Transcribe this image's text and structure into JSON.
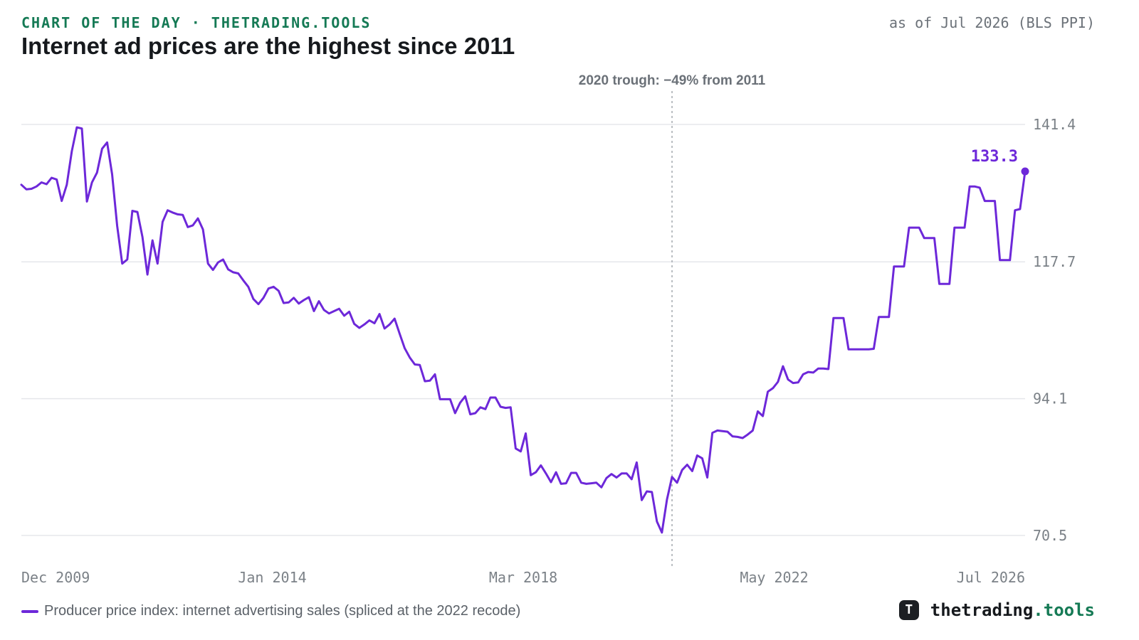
{
  "header": {
    "kicker": "CHART OF THE DAY · THETRADING.TOOLS",
    "as_of": "as of Jul 2026 (BLS PPI)",
    "title": "Internet ad prices are the highest since 2011"
  },
  "footer": {
    "legend_label": "Producer price index: internet advertising sales (spliced at the 2022 recode)",
    "brand_logo_letter": "T",
    "brand_name": "thetrading",
    "brand_tld": ".tools"
  },
  "colors": {
    "line": "#6d28d9",
    "accent": "#157a55",
    "grid": "#e5e7eb",
    "axis_text": "#7b8187",
    "annotation": "#6b7178"
  },
  "chart_data": {
    "type": "line",
    "title": "Internet ad prices are the highest since 2011",
    "xlabel": "",
    "ylabel": "",
    "x_ticks": [
      "Dec 2009",
      "Jan 2014",
      "Mar 2018",
      "May 2022",
      "Jul 2026"
    ],
    "y_ticks": [
      141.4,
      117.7,
      94.1,
      70.5
    ],
    "ylim": [
      70.5,
      141.4
    ],
    "y_axis_position": "right",
    "grid": true,
    "legend": "bottom-left",
    "annotation": {
      "date": "2020-09",
      "label": "2020 trough: −49% from 2011"
    },
    "end_label": "133.3",
    "series": [
      {
        "name": "Producer price index: internet advertising sales (spliced at the 2022 recode)",
        "points": [
          [
            "2009-12",
            131.0
          ],
          [
            "2010-01",
            130.2
          ],
          [
            "2010-02",
            130.3
          ],
          [
            "2010-03",
            130.7
          ],
          [
            "2010-04",
            131.4
          ],
          [
            "2010-05",
            131.1
          ],
          [
            "2010-06",
            132.2
          ],
          [
            "2010-07",
            131.9
          ],
          [
            "2010-08",
            128.2
          ],
          [
            "2010-09",
            131.0
          ],
          [
            "2010-10",
            136.8
          ],
          [
            "2010-11",
            140.9
          ],
          [
            "2010-12",
            140.7
          ],
          [
            "2011-01",
            128.1
          ],
          [
            "2011-02",
            131.4
          ],
          [
            "2011-03",
            133.1
          ],
          [
            "2011-04",
            137.2
          ],
          [
            "2011-05",
            138.3
          ],
          [
            "2011-06",
            132.8
          ],
          [
            "2011-07",
            123.9
          ],
          [
            "2011-08",
            117.4
          ],
          [
            "2011-09",
            118.1
          ],
          [
            "2011-10",
            126.5
          ],
          [
            "2011-11",
            126.3
          ],
          [
            "2011-12",
            122.0
          ],
          [
            "2012-01",
            115.5
          ],
          [
            "2012-02",
            121.4
          ],
          [
            "2012-03",
            117.4
          ],
          [
            "2012-04",
            124.6
          ],
          [
            "2012-05",
            126.6
          ],
          [
            "2012-06",
            126.2
          ],
          [
            "2012-07",
            125.9
          ],
          [
            "2012-08",
            125.8
          ],
          [
            "2012-09",
            123.7
          ],
          [
            "2012-10",
            124.0
          ],
          [
            "2012-11",
            125.2
          ],
          [
            "2012-12",
            123.3
          ],
          [
            "2013-01",
            117.4
          ],
          [
            "2013-02",
            116.3
          ],
          [
            "2013-03",
            117.6
          ],
          [
            "2013-04",
            118.1
          ],
          [
            "2013-05",
            116.4
          ],
          [
            "2013-06",
            115.9
          ],
          [
            "2013-07",
            115.7
          ],
          [
            "2013-08",
            114.5
          ],
          [
            "2013-09",
            113.4
          ],
          [
            "2013-10",
            111.3
          ],
          [
            "2013-11",
            110.4
          ],
          [
            "2013-12",
            111.5
          ],
          [
            "2014-01",
            113.1
          ],
          [
            "2014-02",
            113.4
          ],
          [
            "2014-03",
            112.7
          ],
          [
            "2014-04",
            110.6
          ],
          [
            "2014-05",
            110.7
          ],
          [
            "2014-06",
            111.5
          ],
          [
            "2014-07",
            110.5
          ],
          [
            "2014-08",
            111.1
          ],
          [
            "2014-09",
            111.6
          ],
          [
            "2014-10",
            109.2
          ],
          [
            "2014-11",
            110.9
          ],
          [
            "2014-12",
            109.4
          ],
          [
            "2015-01",
            108.8
          ],
          [
            "2015-02",
            109.2
          ],
          [
            "2015-03",
            109.6
          ],
          [
            "2015-04",
            108.4
          ],
          [
            "2015-05",
            109.1
          ],
          [
            "2015-06",
            107.0
          ],
          [
            "2015-07",
            106.3
          ],
          [
            "2015-08",
            106.9
          ],
          [
            "2015-09",
            107.6
          ],
          [
            "2015-10",
            107.1
          ],
          [
            "2015-11",
            108.7
          ],
          [
            "2015-12",
            106.2
          ],
          [
            "2016-01",
            106.9
          ],
          [
            "2016-02",
            107.9
          ],
          [
            "2016-03",
            105.3
          ],
          [
            "2016-04",
            102.8
          ],
          [
            "2016-05",
            101.2
          ],
          [
            "2016-06",
            100.0
          ],
          [
            "2016-07",
            99.9
          ],
          [
            "2016-08",
            97.1
          ],
          [
            "2016-09",
            97.2
          ],
          [
            "2016-10",
            98.3
          ],
          [
            "2016-11",
            94.0
          ],
          [
            "2016-12",
            94.0
          ],
          [
            "2017-01",
            94.0
          ],
          [
            "2017-02",
            91.6
          ],
          [
            "2017-03",
            93.4
          ],
          [
            "2017-04",
            94.5
          ],
          [
            "2017-05",
            91.4
          ],
          [
            "2017-06",
            91.6
          ],
          [
            "2017-07",
            92.6
          ],
          [
            "2017-08",
            92.3
          ],
          [
            "2017-09",
            94.3
          ],
          [
            "2017-10",
            94.3
          ],
          [
            "2017-11",
            92.7
          ],
          [
            "2017-12",
            92.5
          ],
          [
            "2018-01",
            92.6
          ],
          [
            "2018-02",
            85.5
          ],
          [
            "2018-03",
            85.0
          ],
          [
            "2018-04",
            88.1
          ],
          [
            "2018-05",
            80.9
          ],
          [
            "2018-06",
            81.4
          ],
          [
            "2018-07",
            82.6
          ],
          [
            "2018-08",
            81.2
          ],
          [
            "2018-09",
            79.7
          ],
          [
            "2018-10",
            81.4
          ],
          [
            "2018-11",
            79.4
          ],
          [
            "2018-12",
            79.5
          ],
          [
            "2019-01",
            81.3
          ],
          [
            "2019-02",
            81.3
          ],
          [
            "2019-03",
            79.6
          ],
          [
            "2019-04",
            79.4
          ],
          [
            "2019-05",
            79.5
          ],
          [
            "2019-06",
            79.6
          ],
          [
            "2019-07",
            78.8
          ],
          [
            "2019-08",
            80.4
          ],
          [
            "2019-09",
            81.1
          ],
          [
            "2019-10",
            80.5
          ],
          [
            "2019-11",
            81.2
          ],
          [
            "2019-12",
            81.2
          ],
          [
            "2020-01",
            80.2
          ],
          [
            "2020-02",
            83.1
          ],
          [
            "2020-03",
            76.6
          ],
          [
            "2020-04",
            78.1
          ],
          [
            "2020-05",
            78.0
          ],
          [
            "2020-06",
            72.9
          ],
          [
            "2020-07",
            71.0
          ],
          [
            "2020-08",
            76.7
          ],
          [
            "2020-09",
            80.6
          ],
          [
            "2020-10",
            79.6
          ],
          [
            "2020-11",
            81.8
          ],
          [
            "2020-12",
            82.7
          ],
          [
            "2021-01",
            81.6
          ],
          [
            "2021-02",
            84.3
          ],
          [
            "2021-03",
            83.8
          ],
          [
            "2021-04",
            80.5
          ],
          [
            "2021-05",
            88.2
          ],
          [
            "2021-06",
            88.6
          ],
          [
            "2021-07",
            88.5
          ],
          [
            "2021-08",
            88.4
          ],
          [
            "2021-09",
            87.6
          ],
          [
            "2021-10",
            87.5
          ],
          [
            "2021-11",
            87.3
          ],
          [
            "2021-12",
            87.9
          ],
          [
            "2022-01",
            88.6
          ],
          [
            "2022-02",
            91.9
          ],
          [
            "2022-03",
            91.1
          ],
          [
            "2022-04",
            95.3
          ],
          [
            "2022-05",
            95.9
          ],
          [
            "2022-06",
            97.0
          ],
          [
            "2022-07",
            99.7
          ],
          [
            "2022-08",
            97.4
          ],
          [
            "2022-09",
            96.8
          ],
          [
            "2022-10",
            96.9
          ],
          [
            "2022-11",
            98.3
          ],
          [
            "2022-12",
            98.7
          ],
          [
            "2023-01",
            98.6
          ],
          [
            "2023-02",
            99.3
          ],
          [
            "2023-03",
            99.3
          ],
          [
            "2023-04",
            99.2
          ],
          [
            "2023-05",
            108.0
          ],
          [
            "2023-06",
            108.0
          ],
          [
            "2023-07",
            108.0
          ],
          [
            "2023-08",
            102.6
          ],
          [
            "2023-09",
            102.6
          ],
          [
            "2023-10",
            102.6
          ],
          [
            "2023-11",
            102.6
          ],
          [
            "2023-12",
            102.6
          ],
          [
            "2024-01",
            102.7
          ],
          [
            "2024-02",
            108.2
          ],
          [
            "2024-03",
            108.2
          ],
          [
            "2024-04",
            108.2
          ],
          [
            "2024-05",
            116.9
          ],
          [
            "2024-06",
            116.9
          ],
          [
            "2024-07",
            116.9
          ],
          [
            "2024-08",
            123.6
          ],
          [
            "2024-09",
            123.6
          ],
          [
            "2024-10",
            123.6
          ],
          [
            "2024-11",
            121.8
          ],
          [
            "2024-12",
            121.8
          ],
          [
            "2025-01",
            121.8
          ],
          [
            "2025-02",
            113.9
          ],
          [
            "2025-03",
            113.9
          ],
          [
            "2025-04",
            113.9
          ],
          [
            "2025-05",
            123.6
          ],
          [
            "2025-06",
            123.6
          ],
          [
            "2025-07",
            123.6
          ],
          [
            "2025-08",
            130.7
          ],
          [
            "2025-09",
            130.7
          ],
          [
            "2025-10",
            130.5
          ],
          [
            "2025-11",
            128.2
          ],
          [
            "2025-12",
            128.2
          ],
          [
            "2026-01",
            128.2
          ],
          [
            "2026-02",
            118.0
          ],
          [
            "2026-03",
            118.0
          ],
          [
            "2026-04",
            118.0
          ],
          [
            "2026-05",
            126.6
          ],
          [
            "2026-06",
            126.8
          ],
          [
            "2026-07",
            133.3
          ]
        ]
      }
    ]
  }
}
